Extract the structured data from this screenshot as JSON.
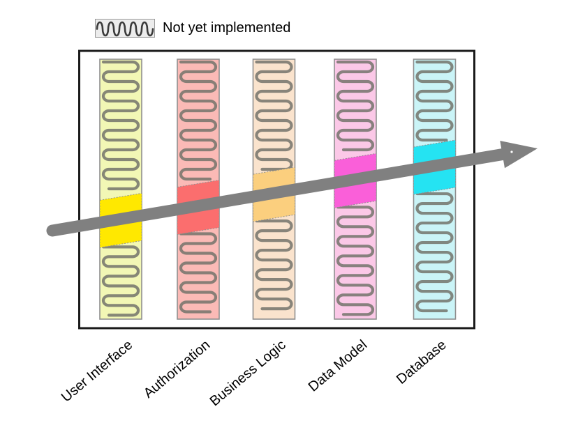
{
  "legend": {
    "label": "Not yet implemented",
    "swatch_bg": "#ececec",
    "wave_color": "#3a3a3a"
  },
  "frame_color": "#1a1a1a",
  "wave_color": "#73736b",
  "arrow": {
    "color": "#808080"
  },
  "layers": [
    {
      "name": "User Interface",
      "base_color": "#f2f7b5",
      "highlight_color": "#ffe800"
    },
    {
      "name": "Authorization",
      "base_color": "#fbbab6",
      "highlight_color": "#fb6e6e"
    },
    {
      "name": "Business Logic",
      "base_color": "#fae3cd",
      "highlight_color": "#fbcf7e"
    },
    {
      "name": "Data Model",
      "base_color": "#fbc8e7",
      "highlight_color": "#fa5fd9"
    },
    {
      "name": "Database",
      "base_color": "#caf4f7",
      "highlight_color": "#25e3f2"
    }
  ]
}
